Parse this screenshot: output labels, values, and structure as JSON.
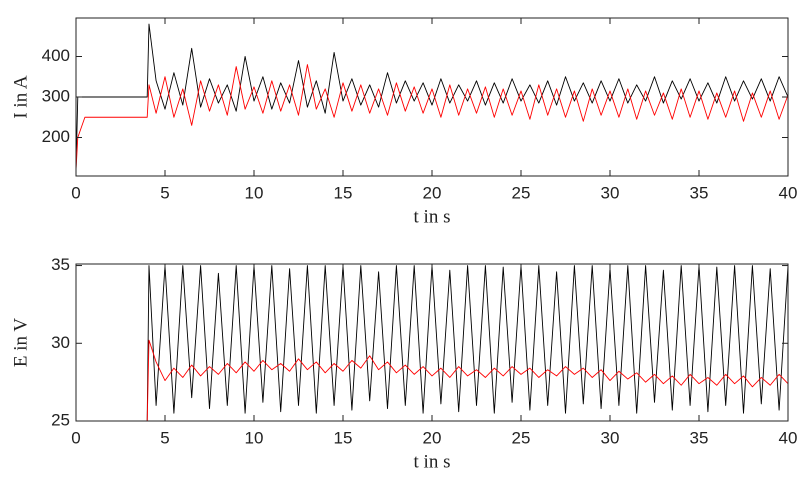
{
  "chart_data": [
    {
      "type": "line",
      "x_label": "t in s",
      "y_label": "I in A",
      "x": [
        0,
        0.1,
        0.5,
        1,
        1.5,
        2,
        2.5,
        3,
        3.5,
        4,
        4.1,
        4.5,
        5,
        5.5,
        6,
        6.5,
        7,
        7.5,
        8,
        8.5,
        9,
        9.5,
        10,
        10.5,
        11,
        11.5,
        12,
        12.5,
        13,
        13.5,
        14,
        14.5,
        15,
        15.5,
        16,
        16.5,
        17,
        17.5,
        18,
        18.5,
        19,
        19.5,
        20,
        20.5,
        21,
        21.5,
        22,
        22.5,
        23,
        23.5,
        24,
        24.5,
        25,
        25.5,
        26,
        26.5,
        27,
        27.5,
        28,
        28.5,
        29,
        29.5,
        30,
        30.5,
        31,
        31.5,
        32,
        32.5,
        33,
        33.5,
        34,
        34.5,
        35,
        35.5,
        36,
        36.5,
        37,
        37.5,
        38,
        38.5,
        39,
        39.5,
        40
      ],
      "xlim": [
        0,
        40
      ],
      "xticks": [
        0,
        5,
        10,
        15,
        20,
        25,
        30,
        35,
        40
      ],
      "ylim": [
        105,
        495
      ],
      "yticks": [
        200,
        300,
        400
      ],
      "series": [
        {
          "color": "#000000",
          "values": [
            120,
            300,
            300,
            300,
            300,
            300,
            300,
            300,
            300,
            300,
            480,
            340,
            270,
            360,
            280,
            420,
            275,
            345,
            285,
            330,
            265,
            400,
            290,
            350,
            270,
            335,
            285,
            390,
            275,
            340,
            260,
            410,
            290,
            345,
            280,
            330,
            275,
            360,
            285,
            340,
            290,
            335,
            280,
            345,
            285,
            330,
            290,
            340,
            280,
            335,
            285,
            345,
            290,
            330,
            285,
            340,
            280,
            350,
            290,
            335,
            285,
            340,
            290,
            345,
            285,
            330,
            290,
            350,
            285,
            340,
            295,
            345,
            290,
            335,
            285,
            350,
            290,
            340,
            295,
            345,
            290,
            350,
            300
          ]
        },
        {
          "color": "#ff0000",
          "values": [
            120,
            200,
            250,
            250,
            250,
            250,
            250,
            250,
            250,
            250,
            330,
            260,
            350,
            250,
            320,
            230,
            340,
            265,
            330,
            255,
            375,
            270,
            325,
            260,
            340,
            265,
            330,
            255,
            380,
            270,
            320,
            250,
            335,
            265,
            330,
            260,
            320,
            255,
            335,
            265,
            325,
            260,
            320,
            250,
            330,
            255,
            320,
            260,
            325,
            250,
            320,
            255,
            315,
            245,
            330,
            255,
            320,
            250,
            315,
            240,
            320,
            255,
            315,
            250,
            320,
            245,
            315,
            255,
            310,
            245,
            320,
            250,
            315,
            245,
            310,
            250,
            315,
            240,
            310,
            250,
            315,
            245,
            305
          ]
        }
      ]
    },
    {
      "type": "line",
      "x_label": "t in s",
      "y_label": "E in V",
      "x": [
        0,
        0.1,
        0.5,
        1,
        1.5,
        2,
        2.5,
        3,
        3.5,
        4,
        4.1,
        4.5,
        5,
        5.5,
        6,
        6.5,
        7,
        7.5,
        8,
        8.5,
        9,
        9.5,
        10,
        10.5,
        11,
        11.5,
        12,
        12.5,
        13,
        13.5,
        14,
        14.5,
        15,
        15.5,
        16,
        16.5,
        17,
        17.5,
        18,
        18.5,
        19,
        19.5,
        20,
        20.5,
        21,
        21.5,
        22,
        22.5,
        23,
        23.5,
        24,
        24.5,
        25,
        25.5,
        26,
        26.5,
        27,
        27.5,
        28,
        28.5,
        29,
        29.5,
        30,
        30.5,
        31,
        31.5,
        32,
        32.5,
        33,
        33.5,
        34,
        34.5,
        35,
        35.5,
        36,
        36.5,
        37,
        37.5,
        38,
        38.5,
        39,
        39.5,
        40
      ],
      "xlim": [
        0,
        40
      ],
      "xticks": [
        0,
        5,
        10,
        15,
        20,
        25,
        30,
        35,
        40
      ],
      "ylim": [
        25,
        35.1
      ],
      "yticks": [
        25,
        30,
        35
      ],
      "series": [
        {
          "color": "#000000",
          "values": [
            25,
            25,
            25,
            25,
            25,
            25,
            25,
            25,
            25,
            25,
            35,
            26,
            35,
            25.5,
            35,
            26.5,
            35,
            25.8,
            34.5,
            26,
            35,
            25.5,
            35,
            26.2,
            35,
            25.6,
            34.8,
            26,
            35,
            25.5,
            35,
            26,
            35,
            25.7,
            35,
            26.3,
            34.6,
            25.8,
            35,
            26,
            35,
            25.5,
            35,
            26.1,
            34.7,
            25.6,
            35,
            26,
            35,
            25.5,
            34.9,
            26.2,
            35,
            25.7,
            35,
            26,
            34.6,
            25.5,
            35,
            26.1,
            35,
            25.8,
            34.8,
            26,
            35,
            25.5,
            35,
            26.2,
            34.7,
            25.7,
            35,
            26,
            35,
            25.6,
            34.9,
            26,
            35,
            25.5,
            35,
            26.1,
            34.8,
            25.7,
            35
          ]
        },
        {
          "color": "#ff0000",
          "values": [
            25,
            25,
            25,
            25,
            25,
            25,
            25,
            25,
            25,
            25,
            30.2,
            28.8,
            27.6,
            28.4,
            27.8,
            28.6,
            27.9,
            28.5,
            28,
            28.7,
            28.1,
            28.8,
            28.2,
            28.9,
            28.3,
            28.7,
            28.2,
            29,
            28.3,
            28.8,
            28.1,
            28.7,
            28.2,
            28.9,
            28.4,
            29.2,
            28.3,
            28.8,
            28.1,
            28.6,
            28,
            28.5,
            27.9,
            28.4,
            27.8,
            28.5,
            27.9,
            28.3,
            27.8,
            28.4,
            27.9,
            28.5,
            28,
            28.4,
            27.8,
            28.3,
            27.9,
            28.5,
            28,
            28.4,
            27.8,
            28.3,
            27.6,
            28.2,
            27.7,
            28.1,
            27.5,
            28,
            27.4,
            27.9,
            27.3,
            28,
            27.4,
            27.8,
            27.3,
            28,
            27.4,
            27.9,
            27.2,
            27.8,
            27.3,
            28,
            27.4
          ]
        }
      ]
    }
  ]
}
